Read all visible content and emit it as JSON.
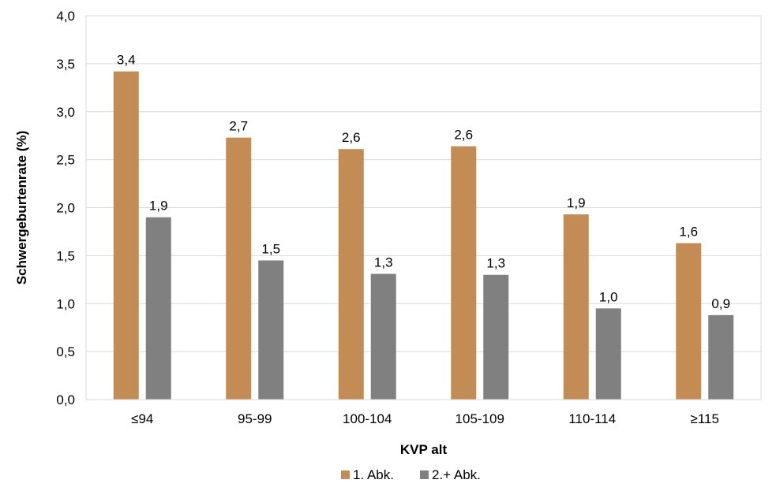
{
  "chart_data": {
    "type": "bar",
    "categories": [
      "≤94",
      "95-99",
      "100-104",
      "105-109",
      "110-114",
      "≥115"
    ],
    "series": [
      {
        "name": "1. Abk.",
        "color": "#C48C55",
        "values": [
          3.42,
          2.73,
          2.61,
          2.64,
          1.93,
          1.63
        ],
        "labels": [
          "3,4",
          "2,7",
          "2,6",
          "2,6",
          "1,9",
          "1,6"
        ]
      },
      {
        "name": "2.+ Abk.",
        "color": "#808080",
        "values": [
          1.9,
          1.45,
          1.31,
          1.3,
          0.95,
          0.88
        ],
        "labels": [
          "1,9",
          "1,5",
          "1,3",
          "1,3",
          "1,0",
          "0,9"
        ]
      }
    ],
    "xlabel": "KVP alt",
    "ylabel": "Schwergeburtenrate (%)",
    "ylim": [
      0,
      4
    ],
    "yticks": [
      0,
      0.5,
      1,
      1.5,
      2,
      2.5,
      3,
      3.5,
      4
    ],
    "ytick_labels": [
      "0,0",
      "0,5",
      "1,0",
      "1,5",
      "2,0",
      "2,5",
      "3,0",
      "3,5",
      "4,0"
    ],
    "grid": true,
    "legend_position": "bottom"
  }
}
